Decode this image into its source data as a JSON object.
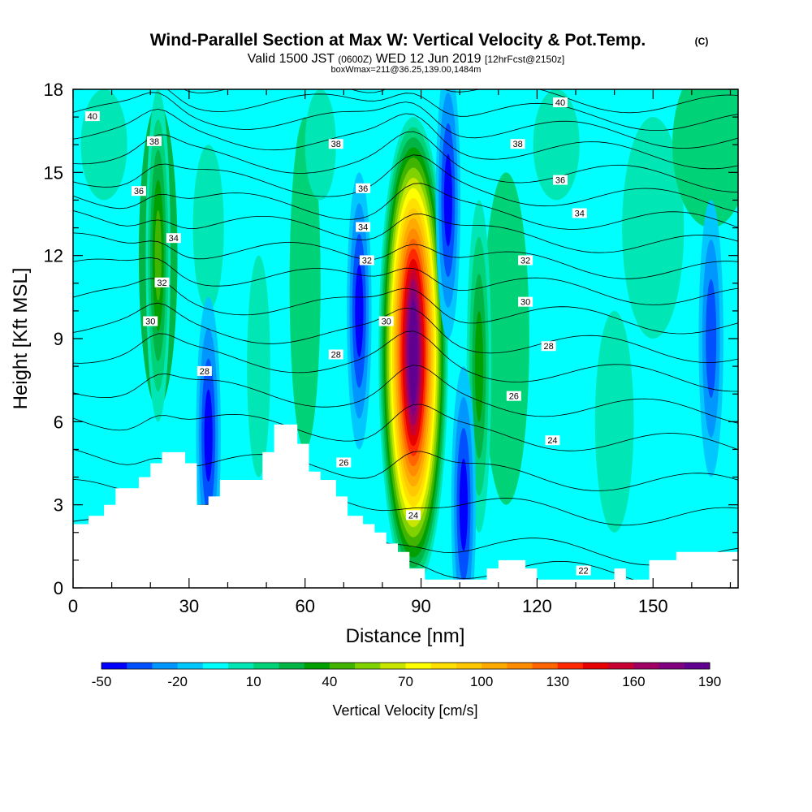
{
  "chart_data": {
    "type": "heatmap",
    "title": "Wind-Parallel Section at Max W: Vertical Velocity & Pot.Temp.",
    "title_mark": "(C)",
    "subtitle_valid": "Valid 1500 JST",
    "subtitle_utc": "(0600Z)",
    "subtitle_date": "WED 12 Jun 2019",
    "subtitle_fcst": "[12hrFcst@2150z]",
    "subtitle2": "boxWmax=211@36.25,139.00,1484m",
    "xlabel": "Distance [nm]",
    "ylabel": "Height [Kft MSL]",
    "xlim": [
      0,
      172
    ],
    "ylim": [
      0,
      18
    ],
    "xticks": [
      0,
      30,
      60,
      90,
      120,
      150
    ],
    "yticks": [
      0,
      3,
      6,
      9,
      12,
      15,
      18
    ],
    "colorbar": {
      "label": "Vertical Velocity [cm/s]",
      "ticks": [
        "-50",
        "-20",
        "10",
        "40",
        "70",
        "100",
        "130",
        "160",
        "190"
      ],
      "levels": [
        -50,
        -35,
        -20,
        -10,
        0,
        10,
        20,
        30,
        40,
        50,
        60,
        70,
        80,
        90,
        100,
        110,
        120,
        130,
        140,
        150,
        160,
        170,
        180,
        190,
        200
      ],
      "colors": [
        "#0000ff",
        "#0050ff",
        "#0096ff",
        "#00c8ff",
        "#00ffff",
        "#00e6b4",
        "#00d278",
        "#00b446",
        "#00a000",
        "#40b400",
        "#80d200",
        "#c8e600",
        "#ffff00",
        "#ffe000",
        "#ffc800",
        "#ffaa00",
        "#ff8c00",
        "#ff6400",
        "#ff2800",
        "#e60000",
        "#c80032",
        "#a00064",
        "#80007f",
        "#600090"
      ]
    },
    "features": [
      {
        "kind": "updraft",
        "x": 88,
        "z": 8.5,
        "peak_w": 211
      },
      {
        "kind": "updraft",
        "x": 22,
        "z": 12,
        "peak_w": 55
      },
      {
        "kind": "updraft",
        "x": 105,
        "z": 8,
        "peak_w": 45
      },
      {
        "kind": "downdraft",
        "x": 97,
        "z": 14,
        "peak_w": -50
      },
      {
        "kind": "downdraft",
        "x": 101,
        "z": 3,
        "peak_w": -50
      },
      {
        "kind": "downdraft",
        "x": 74,
        "z": 10,
        "peak_w": -50
      },
      {
        "kind": "downdraft",
        "x": 35,
        "z": 5.5,
        "peak_w": -50
      },
      {
        "kind": "downdraft",
        "x": 165,
        "z": 9,
        "peak_w": -35
      }
    ],
    "terrain": [
      [
        0,
        2.3
      ],
      [
        4,
        2.3
      ],
      [
        4,
        2.6
      ],
      [
        8,
        2.6
      ],
      [
        8,
        3.0
      ],
      [
        11,
        3.0
      ],
      [
        11,
        3.6
      ],
      [
        17,
        3.6
      ],
      [
        17,
        4.0
      ],
      [
        20,
        4.0
      ],
      [
        20,
        4.5
      ],
      [
        23,
        4.5
      ],
      [
        23,
        4.9
      ],
      [
        29,
        4.9
      ],
      [
        29,
        4.5
      ],
      [
        32,
        4.5
      ],
      [
        32,
        3.0
      ],
      [
        35,
        3.0
      ],
      [
        35,
        3.3
      ],
      [
        38,
        3.3
      ],
      [
        38,
        3.9
      ],
      [
        49,
        3.9
      ],
      [
        49,
        4.9
      ],
      [
        52,
        4.9
      ],
      [
        52,
        5.9
      ],
      [
        58,
        5.9
      ],
      [
        58,
        5.2
      ],
      [
        61,
        5.2
      ],
      [
        61,
        4.2
      ],
      [
        64,
        4.2
      ],
      [
        64,
        3.9
      ],
      [
        68,
        3.9
      ],
      [
        68,
        3.3
      ],
      [
        71,
        3.3
      ],
      [
        71,
        2.6
      ],
      [
        75,
        2.6
      ],
      [
        75,
        2.3
      ],
      [
        78,
        2.3
      ],
      [
        78,
        2.0
      ],
      [
        81,
        2.0
      ],
      [
        81,
        1.6
      ],
      [
        84,
        1.6
      ],
      [
        84,
        1.3
      ],
      [
        87,
        1.3
      ],
      [
        87,
        0.7
      ],
      [
        91,
        0.7
      ],
      [
        91,
        0.3
      ],
      [
        96,
        0.3
      ],
      [
        96,
        0.3
      ],
      [
        107,
        0.3
      ],
      [
        107,
        0.7
      ],
      [
        110,
        0.7
      ],
      [
        110,
        1.0
      ],
      [
        117,
        1.0
      ],
      [
        117,
        0.7
      ],
      [
        120,
        0.7
      ],
      [
        120,
        0.3
      ],
      [
        140,
        0.3
      ],
      [
        140,
        0.7
      ],
      [
        143,
        0.7
      ],
      [
        143,
        0.3
      ],
      [
        149,
        0.3
      ],
      [
        149,
        1.0
      ],
      [
        156,
        1.0
      ],
      [
        156,
        1.3
      ],
      [
        172,
        1.3
      ]
    ],
    "isentrope_labels": [
      {
        "text": "40",
        "x": 5,
        "z": 17.0
      },
      {
        "text": "40",
        "x": 126,
        "z": 17.5
      },
      {
        "text": "38",
        "x": 21,
        "z": 16.1
      },
      {
        "text": "38",
        "x": 68,
        "z": 16.0
      },
      {
        "text": "38",
        "x": 115,
        "z": 16.0
      },
      {
        "text": "36",
        "x": 17,
        "z": 14.3
      },
      {
        "text": "36",
        "x": 75,
        "z": 14.4
      },
      {
        "text": "36",
        "x": 126,
        "z": 14.7
      },
      {
        "text": "34",
        "x": 26,
        "z": 12.6
      },
      {
        "text": "34",
        "x": 75,
        "z": 13.0
      },
      {
        "text": "34",
        "x": 131,
        "z": 13.5
      },
      {
        "text": "32",
        "x": 23,
        "z": 11.0
      },
      {
        "text": "32",
        "x": 76,
        "z": 11.8
      },
      {
        "text": "32",
        "x": 117,
        "z": 11.8
      },
      {
        "text": "30",
        "x": 20,
        "z": 9.6
      },
      {
        "text": "30",
        "x": 81,
        "z": 9.6
      },
      {
        "text": "30",
        "x": 117,
        "z": 10.3
      },
      {
        "text": "28",
        "x": 34,
        "z": 7.8
      },
      {
        "text": "28",
        "x": 68,
        "z": 8.4
      },
      {
        "text": "28",
        "x": 123,
        "z": 8.7
      },
      {
        "text": "26",
        "x": 114,
        "z": 6.9
      },
      {
        "text": "26",
        "x": 70,
        "z": 4.5
      },
      {
        "text": "24",
        "x": 88,
        "z": 2.6
      },
      {
        "text": "24",
        "x": 124,
        "z": 5.3
      },
      {
        "text": "22",
        "x": 132,
        "z": 0.6
      }
    ]
  }
}
